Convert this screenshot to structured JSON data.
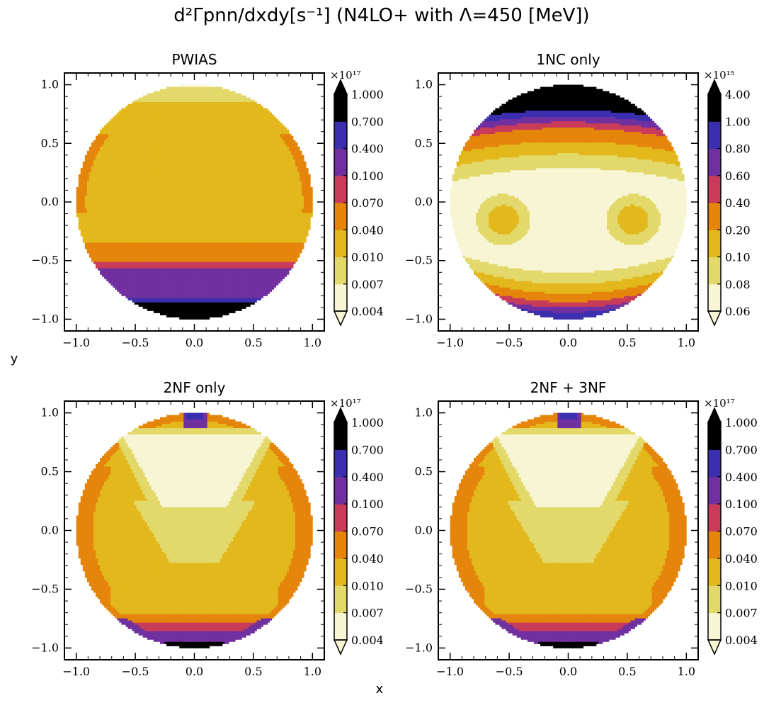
{
  "figure": {
    "title": "d²Γpnn/dxdy[s⁻¹] (N4LO+ with Λ=450 [MeV])",
    "xlabel": "x",
    "ylabel": "y"
  },
  "chart_data": [
    {
      "type": "heatmap",
      "title": "PWIAS",
      "xlim": [
        -1.1,
        1.1
      ],
      "ylim": [
        -1.1,
        1.1
      ],
      "xticks": [
        -1.0,
        -0.5,
        0.0,
        0.5,
        1.0
      ],
      "yticks": [
        -1.0,
        -0.5,
        0.0,
        0.5,
        1.0
      ],
      "xtick_labels": [
        "−1.0",
        "−0.5",
        "0.0",
        "0.5",
        "1.0"
      ],
      "ytick_labels": [
        "−1.0",
        "−0.5",
        "0.0",
        "0.5",
        "1.0"
      ],
      "domain": "unit disk x²+y²≤1",
      "colorbar": {
        "multiplier": "×10¹⁷",
        "levels": [
          0.004,
          0.007,
          0.01,
          0.04,
          0.07,
          0.1,
          0.4,
          0.7,
          1.0
        ],
        "labels": [
          "0.004",
          "0.007",
          "0.010",
          "0.040",
          "0.070",
          "0.100",
          "0.400",
          "0.700",
          "1.000"
        ],
        "extend": "both"
      },
      "bands": [
        {
          "region": "y > 0.98",
          "level_index": 0
        },
        {
          "region": "0.85 < y < 0.98",
          "level_index": 1
        },
        {
          "region": "-0.34 < y < 0.85",
          "level_index": 2
        },
        {
          "region": "-0.51 < y < -0.34",
          "level_index": 3
        },
        {
          "region": "-0.56 < y < -0.51",
          "level_index": 4
        },
        {
          "region": "-0.82 < y < -0.56",
          "level_index": 5
        },
        {
          "region": "-0.86 < y < -0.82",
          "level_index": 6
        },
        {
          "region": "y < -0.86",
          "level_index": 7
        }
      ]
    },
    {
      "type": "heatmap",
      "title": "1NC only",
      "xlim": [
        -1.1,
        1.1
      ],
      "ylim": [
        -1.1,
        1.1
      ],
      "xticks": [
        -1.0,
        -0.5,
        0.0,
        0.5,
        1.0
      ],
      "yticks": [
        -1.0,
        -0.5,
        0.0,
        0.5,
        1.0
      ],
      "xtick_labels": [
        "−1.0",
        "−0.5",
        "0.0",
        "0.5",
        "1.0"
      ],
      "ytick_labels": [
        "−1.0",
        "−0.5",
        "0.0",
        "0.5",
        "1.0"
      ],
      "domain": "unit disk x²+y²≤1",
      "colorbar": {
        "multiplier": "×10¹⁵",
        "levels": [
          0.06,
          0.08,
          0.1,
          0.2,
          0.4,
          0.6,
          0.8,
          1.0,
          4.0
        ],
        "labels": [
          "0.06",
          "0.08",
          "0.10",
          "0.20",
          "0.40",
          "0.60",
          "0.80",
          "1.00",
          "4.00"
        ],
        "extend": "both"
      },
      "features": "pale center band with two lobes at x≈±0.55, y≈-0.15; rising toward top and bottom rims"
    },
    {
      "type": "heatmap",
      "title": "2NF only",
      "xlim": [
        -1.1,
        1.1
      ],
      "ylim": [
        -1.1,
        1.1
      ],
      "xticks": [
        -1.0,
        -0.5,
        0.0,
        0.5,
        1.0
      ],
      "yticks": [
        -1.0,
        -0.5,
        0.0,
        0.5,
        1.0
      ],
      "xtick_labels": [
        "−1.0",
        "−0.5",
        "0.0",
        "0.5",
        "1.0"
      ],
      "ytick_labels": [
        "−1.0",
        "−0.5",
        "0.0",
        "0.5",
        "1.0"
      ],
      "domain": "unit disk x²+y²≤1",
      "colorbar": {
        "multiplier": "×10¹⁷",
        "levels": [
          0.004,
          0.007,
          0.01,
          0.04,
          0.07,
          0.1,
          0.4,
          0.7,
          1.0
        ],
        "labels": [
          "0.004",
          "0.007",
          "0.010",
          "0.040",
          "0.070",
          "0.100",
          "0.400",
          "0.700",
          "1.000"
        ],
        "extend": "both"
      },
      "features": "inverted-triangle pale region centred at top, gold body, orange/purple rim, black spot at bottom"
    },
    {
      "type": "heatmap",
      "title": "2NF + 3NF",
      "xlim": [
        -1.1,
        1.1
      ],
      "ylim": [
        -1.1,
        1.1
      ],
      "xticks": [
        -1.0,
        -0.5,
        0.0,
        0.5,
        1.0
      ],
      "yticks": [
        -1.0,
        -0.5,
        0.0,
        0.5,
        1.0
      ],
      "xtick_labels": [
        "−1.0",
        "−0.5",
        "0.0",
        "0.5",
        "1.0"
      ],
      "ytick_labels": [
        "−1.0",
        "−0.5",
        "0.0",
        "0.5",
        "1.0"
      ],
      "domain": "unit disk x²+y²≤1",
      "colorbar": {
        "multiplier": "×10¹⁷",
        "levels": [
          0.004,
          0.007,
          0.01,
          0.04,
          0.07,
          0.1,
          0.4,
          0.7,
          1.0
        ],
        "labels": [
          "0.004",
          "0.007",
          "0.010",
          "0.040",
          "0.070",
          "0.100",
          "0.400",
          "0.700",
          "1.000"
        ],
        "extend": "both"
      },
      "features": "nearly identical to 2NF only"
    }
  ],
  "colors": {
    "palette": [
      "#f7f5d3",
      "#e3d96a",
      "#e2b81c",
      "#e5850b",
      "#c83c5a",
      "#7030a0",
      "#3b2fae",
      "#000000"
    ]
  }
}
